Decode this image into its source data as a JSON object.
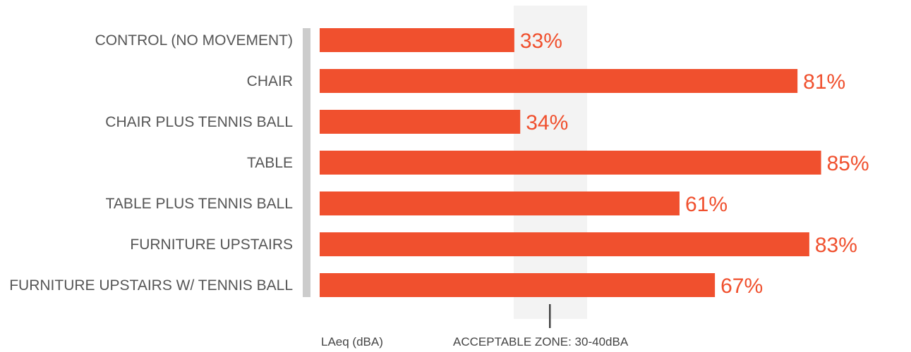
{
  "chart_data": {
    "type": "bar",
    "orientation": "horizontal",
    "categories": [
      "CONTROL (NO MOVEMENT)",
      "CHAIR",
      "CHAIR PLUS TENNIS BALL",
      "TABLE",
      "TABLE PLUS TENNIS BALL",
      "FURNITURE UPSTAIRS",
      "FURNITURE UPSTAIRS W/ TENNIS BALL"
    ],
    "values": [
      33,
      81,
      34,
      85,
      61,
      83,
      67
    ],
    "value_labels": [
      "33%",
      "81%",
      "34%",
      "85%",
      "61%",
      "83%",
      "67%"
    ],
    "xlim": [
      0,
      100
    ],
    "grid": false,
    "acceptable_zone": {
      "label": "ACCEPTABLE ZONE: 30-40dBA",
      "range": [
        30,
        40
      ]
    },
    "xlabel": "LAeq (dBA)",
    "colors": {
      "bar": "#f0502e",
      "zone": "#f3f3f3",
      "axis": "#cccccc",
      "marker": "#444444"
    }
  }
}
